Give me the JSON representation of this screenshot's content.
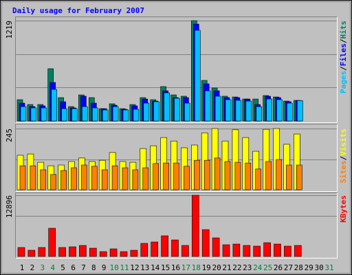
{
  "chart_data": [
    {
      "type": "bar",
      "title": "Daily usage for February 2007",
      "ylim": [
        0,
        1219
      ],
      "yticks": [
        1219
      ],
      "gridlines": [
        406,
        813
      ],
      "legend_separator": "/",
      "series": [
        {
          "name": "Hits",
          "color": "#008060",
          "values": [
            259,
            200,
            200,
            635,
            284,
            175,
            317,
            284,
            150,
            209,
            150,
            200,
            284,
            259,
            418,
            317,
            301,
            1219,
            493,
            401,
            301,
            292,
            267,
            267,
            309,
            292,
            242,
            250,
            null,
            null,
            null
          ]
        },
        {
          "name": "Files",
          "color": "#0000ff",
          "values": [
            217,
            175,
            184,
            468,
            234,
            159,
            301,
            217,
            150,
            192,
            142,
            184,
            267,
            242,
            367,
            284,
            284,
            1177,
            451,
            367,
            284,
            284,
            267,
            200,
            301,
            284,
            234,
            250,
            null,
            null,
            null
          ]
        },
        {
          "name": "Pages",
          "color": "#00c0ff",
          "values": [
            175,
            159,
            159,
            384,
            150,
            150,
            175,
            159,
            134,
            175,
            134,
            142,
            217,
            234,
            342,
            276,
            217,
            1102,
            367,
            301,
            259,
            251,
            242,
            175,
            267,
            259,
            217,
            248,
            null,
            null,
            null
          ]
        }
      ]
    },
    {
      "type": "bar",
      "ylim": [
        0,
        245
      ],
      "yticks": [
        245
      ],
      "gridlines": [
        122
      ],
      "legend_separator": "/",
      "series": [
        {
          "name": "Visits",
          "color": "#ffff00",
          "values": [
            138,
            143,
            110,
            96,
            99,
            113,
            127,
            113,
            118,
            149,
            113,
            110,
            165,
            176,
            209,
            195,
            168,
            179,
            228,
            245,
            195,
            240,
            209,
            154,
            242,
            245,
            182,
            223,
            null,
            null,
            null
          ]
        },
        {
          "name": "Sites",
          "color": "#ff8000",
          "values": [
            96,
            96,
            80,
            61,
            77,
            88,
            99,
            94,
            80,
            96,
            88,
            80,
            88,
            105,
            107,
            107,
            94,
            118,
            118,
            127,
            113,
            110,
            107,
            83,
            113,
            121,
            99,
            99,
            null,
            null,
            null
          ]
        }
      ]
    },
    {
      "type": "bar",
      "ylim": [
        0,
        12896
      ],
      "yticks": [
        12896
      ],
      "gridlines": [
        8600
      ],
      "categories": [
        "1",
        "2",
        "3",
        "4",
        "5",
        "6",
        "7",
        "8",
        "9",
        "10",
        "11",
        "12",
        "13",
        "14",
        "15",
        "16",
        "17",
        "18",
        "19",
        "20",
        "21",
        "22",
        "23",
        "24",
        "25",
        "26",
        "27",
        "28",
        "29",
        "30",
        "31"
      ],
      "category_colors": [
        "#000000",
        "#000000",
        "#008040",
        "#008040",
        "#000000",
        "#000000",
        "#000000",
        "#000000",
        "#000000",
        "#008040",
        "#008040",
        "#000000",
        "#000000",
        "#000000",
        "#000000",
        "#000000",
        "#008040",
        "#008040",
        "#000000",
        "#000000",
        "#000000",
        "#000000",
        "#000000",
        "#008040",
        "#008040",
        "#000000",
        "#000000",
        "#000000",
        "#000000",
        "#000000",
        "#008040"
      ],
      "series": [
        {
          "name": "KBytes",
          "color": "#ff0000",
          "values": [
            1884,
            1304,
            1884,
            5941,
            1884,
            2029,
            2318,
            1739,
            1014,
            1594,
            1014,
            1304,
            2753,
            3043,
            4347,
            3478,
            2318,
            12896,
            5651,
            3912,
            2463,
            2608,
            2318,
            2173,
            2898,
            2608,
            2173,
            2318,
            null,
            null,
            null
          ]
        }
      ]
    }
  ]
}
